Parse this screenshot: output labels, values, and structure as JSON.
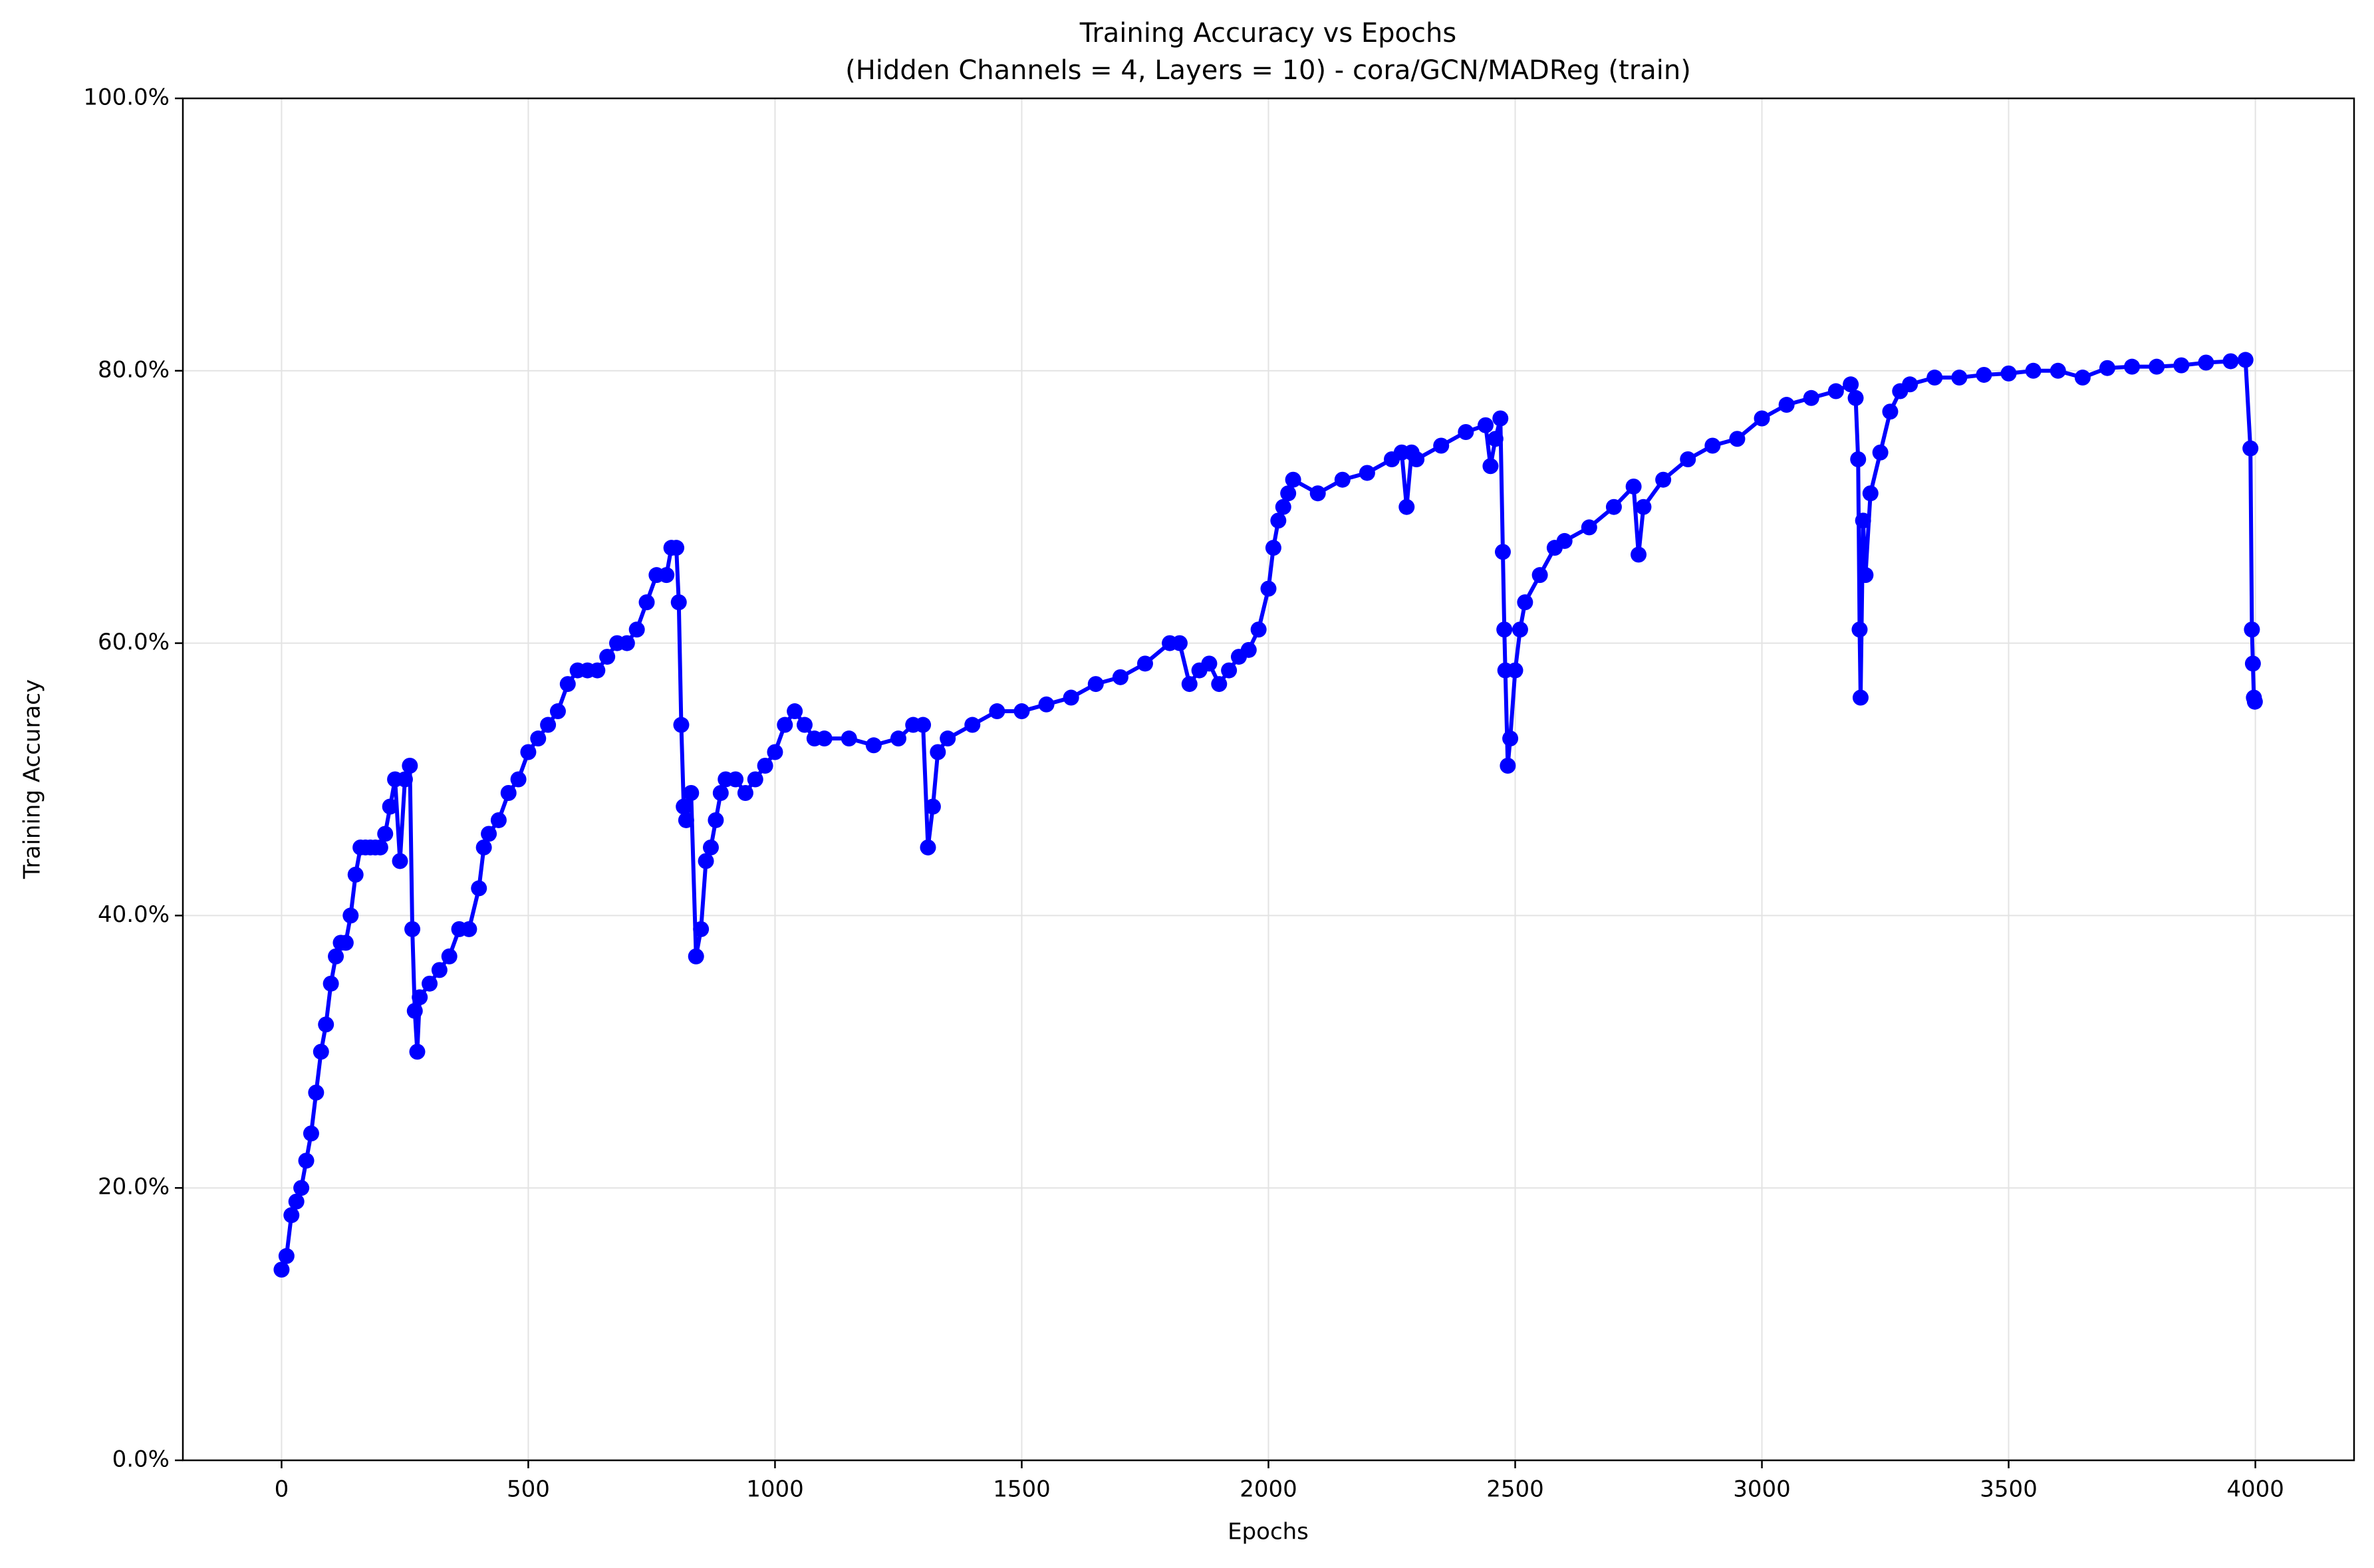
{
  "chart_data": {
    "type": "line",
    "title": "Training Accuracy vs Epochs",
    "subtitle": "(Hidden Channels = 4, Layers = 10) - cora/GCN/MADReg (train)",
    "x_label": "Epochs",
    "y_label": "Training Accuracy",
    "xlim": [
      -200,
      4200
    ],
    "ylim": [
      0,
      100
    ],
    "xticks": [
      0,
      500,
      1000,
      1500,
      2000,
      2500,
      3000,
      3500,
      4000
    ],
    "yticks": [
      {
        "value": 0,
        "label": "0.0%"
      },
      {
        "value": 20,
        "label": "20.0%"
      },
      {
        "value": 40,
        "label": "40.0%"
      },
      {
        "value": 60,
        "label": "60.0%"
      },
      {
        "value": 80,
        "label": "80.0%"
      },
      {
        "value": 100,
        "label": "100.0%"
      }
    ],
    "grid": true,
    "markers": true,
    "x": [
      0,
      10,
      20,
      30,
      40,
      50,
      60,
      70,
      80,
      90,
      100,
      110,
      120,
      130,
      140,
      150,
      160,
      170,
      180,
      190,
      200,
      210,
      220,
      230,
      240,
      250,
      260,
      265,
      270,
      275,
      280,
      300,
      320,
      340,
      360,
      380,
      400,
      410,
      420,
      440,
      460,
      480,
      500,
      520,
      540,
      560,
      580,
      600,
      620,
      640,
      660,
      680,
      700,
      720,
      740,
      760,
      780,
      790,
      800,
      805,
      810,
      815,
      820,
      830,
      840,
      850,
      860,
      870,
      880,
      890,
      900,
      920,
      940,
      960,
      980,
      1000,
      1020,
      1040,
      1060,
      1080,
      1100,
      1150,
      1200,
      1250,
      1280,
      1300,
      1310,
      1320,
      1330,
      1350,
      1400,
      1450,
      1500,
      1550,
      1600,
      1650,
      1700,
      1750,
      1800,
      1820,
      1840,
      1860,
      1880,
      1900,
      1920,
      1940,
      1960,
      1980,
      2000,
      2010,
      2020,
      2030,
      2040,
      2050,
      2100,
      2150,
      2200,
      2250,
      2270,
      2280,
      2290,
      2300,
      2350,
      2400,
      2440,
      2450,
      2460,
      2470,
      2475,
      2478,
      2480,
      2485,
      2490,
      2500,
      2510,
      2520,
      2550,
      2580,
      2600,
      2650,
      2700,
      2740,
      2750,
      2760,
      2800,
      2850,
      2900,
      2950,
      3000,
      3050,
      3100,
      3150,
      3180,
      3190,
      3195,
      3198,
      3200,
      3205,
      3210,
      3220,
      3240,
      3260,
      3280,
      3300,
      3350,
      3400,
      3450,
      3500,
      3550,
      3600,
      3650,
      3700,
      3750,
      3800,
      3850,
      3900,
      3950,
      3980,
      3990,
      3993,
      3995,
      3997,
      3999
    ],
    "series": [
      {
        "name": "train",
        "color": "#0000ff",
        "values": [
          14,
          15,
          18,
          19,
          20,
          22,
          24,
          27,
          30,
          32,
          35,
          37,
          38,
          38,
          40,
          43,
          45,
          45,
          45,
          45,
          45,
          46,
          48,
          50,
          44,
          50,
          51,
          39,
          33,
          30,
          34,
          35,
          36,
          37,
          39,
          39,
          42,
          45,
          46,
          47,
          49,
          50,
          52,
          53,
          54,
          55,
          57,
          58,
          58,
          58,
          59,
          60,
          60,
          61,
          63,
          65,
          65,
          67,
          67,
          63,
          54,
          48,
          47,
          49,
          37,
          39,
          44,
          45,
          47,
          49,
          50,
          50,
          49,
          50,
          51,
          52,
          54,
          55,
          54,
          53,
          53,
          53,
          52.5,
          53,
          54,
          54,
          45,
          48,
          52,
          53,
          54,
          55,
          55,
          55.5,
          56,
          57,
          57.5,
          58.5,
          60,
          60,
          57,
          58,
          58.5,
          57,
          58,
          59,
          59.5,
          61,
          64,
          67,
          69,
          70,
          71,
          72,
          71,
          72,
          72.5,
          73.5,
          74,
          70,
          74,
          73.5,
          74.5,
          75.5,
          76,
          73,
          75,
          76.5,
          66.7,
          61,
          58,
          51,
          53,
          58,
          61,
          63,
          65,
          67,
          67.5,
          68.5,
          70,
          71.5,
          66.5,
          70,
          72,
          73.5,
          74.5,
          75,
          76.5,
          77.5,
          78,
          78.5,
          79,
          78,
          73.5,
          61,
          56,
          69,
          65,
          71,
          74,
          77,
          78.5,
          79,
          79.5,
          79.5,
          79.7,
          79.8,
          80,
          80,
          79.5,
          80.2,
          80.3,
          80.3,
          80.4,
          80.6,
          80.7,
          80.8,
          74.3,
          61,
          58.5,
          56,
          55.7
        ]
      }
    ]
  }
}
